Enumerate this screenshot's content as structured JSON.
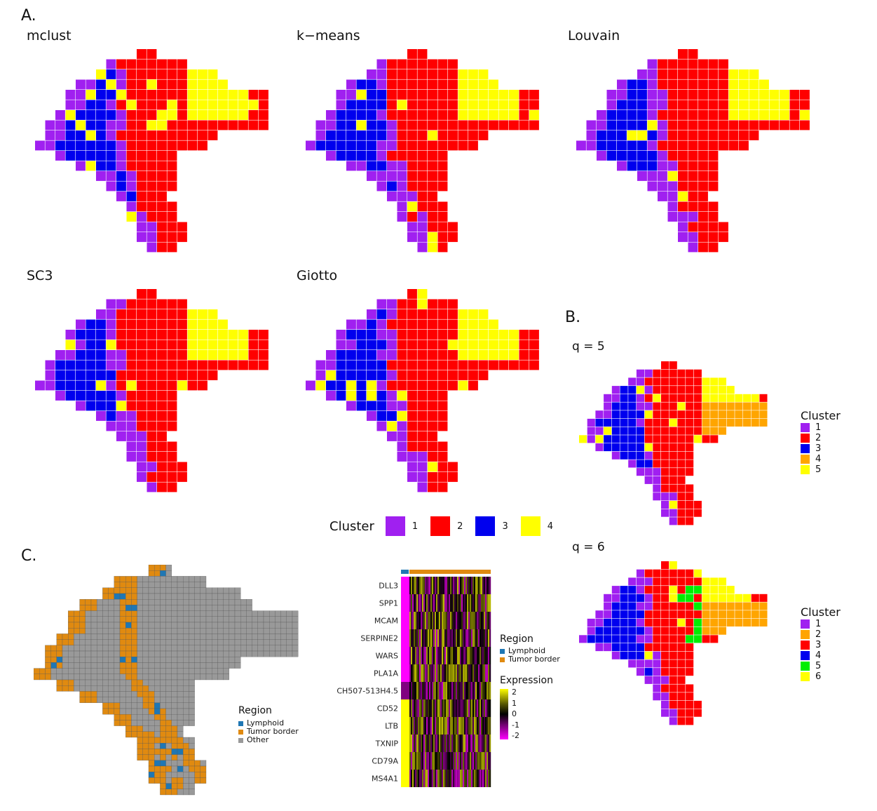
{
  "panel_a": {
    "letter": "A.",
    "methods": [
      "mclust",
      "k−means",
      "Louvain",
      "SC3",
      "Giotto"
    ],
    "legend": {
      "title": "Cluster",
      "items": [
        {
          "label": "1",
          "color": "#a020f0"
        },
        {
          "label": "2",
          "color": "#ff0000"
        },
        {
          "label": "3",
          "color": "#0000ee"
        },
        {
          "label": "4",
          "color": "#ffff00"
        }
      ]
    }
  },
  "panel_b": {
    "letter": "B.",
    "q5": {
      "label": "q = 5",
      "legend_title": "Cluster",
      "items": [
        {
          "label": "1",
          "color": "#a020f0"
        },
        {
          "label": "2",
          "color": "#ff0000"
        },
        {
          "label": "3",
          "color": "#0000ee"
        },
        {
          "label": "4",
          "color": "#ffa500"
        },
        {
          "label": "5",
          "color": "#ffff00"
        }
      ]
    },
    "q6": {
      "label": "q = 6",
      "legend_title": "Cluster",
      "items": [
        {
          "label": "1",
          "color": "#a020f0"
        },
        {
          "label": "2",
          "color": "#ffa500"
        },
        {
          "label": "3",
          "color": "#ff0000"
        },
        {
          "label": "4",
          "color": "#0000ee"
        },
        {
          "label": "5",
          "color": "#00ee00"
        },
        {
          "label": "6",
          "color": "#ffff00"
        }
      ]
    }
  },
  "panel_c": {
    "letter": "C.",
    "region_legend": {
      "title": "Region",
      "items": [
        {
          "label": "Lymphoid",
          "color": "#1f77b4"
        },
        {
          "label": "Tumor border",
          "color": "#e08a10"
        },
        {
          "label": "Other",
          "color": "#999999"
        }
      ]
    },
    "heatmap": {
      "genes": [
        "DLL3",
        "SPP1",
        "MCAM",
        "SERPINE2",
        "WARS",
        "PLA1A",
        "CH507-513H4.5",
        "CD52",
        "LTB",
        "TXNIP",
        "CD79A",
        "MS4A1"
      ],
      "legend_region_title": "Region",
      "legend_region_items": [
        {
          "label": "Lymphoid",
          "color": "#1f77b4"
        },
        {
          "label": "Tumor border",
          "color": "#e08a10"
        }
      ],
      "legend_expression_title": "Expression",
      "expression_ticks": [
        "2",
        "1",
        "0",
        "-1",
        "-2"
      ]
    }
  },
  "colors": {
    "purple": "#a020f0",
    "red": "#ff0000",
    "blue": "#0000ee",
    "yellow": "#ffff00",
    "orange": "#ffa500",
    "green": "#00ee00",
    "grey": "#999999",
    "tumor": "#e08a10",
    "lymph": "#1f77b4"
  }
}
